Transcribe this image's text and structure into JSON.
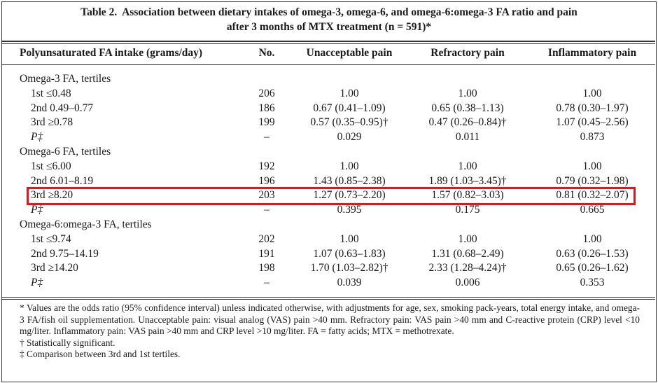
{
  "title": {
    "label": "Table 2.",
    "lines": [
      "Association between dietary intakes of omega-3, omega-6, and omega-6:omega-3 FA ratio and pain",
      "after 3 months of MTX treatment (n = 591)*"
    ]
  },
  "table": {
    "columns": [
      "Polyunsaturated FA intake (grams/day)",
      "No.",
      "Unacceptable pain",
      "Refractory pain",
      "Inflammatory pain"
    ],
    "groups": [
      {
        "label": "Omega-3 FA, tertiles",
        "rows": [
          {
            "cells": [
              "1st ≤0.48",
              "206",
              "1.00",
              "1.00",
              "1.00"
            ]
          },
          {
            "cells": [
              "2nd 0.49–0.77",
              "186",
              "0.67 (0.41–1.09)",
              "0.65 (0.38–1.13)",
              "0.78 (0.30–1.97)"
            ]
          },
          {
            "cells": [
              "3rd ≥0.78",
              "199",
              "0.57 (0.35–0.95)†",
              "0.47 (0.26–0.84)†",
              "1.07 (0.45–2.56)"
            ]
          },
          {
            "cells": [
              "P‡",
              "–",
              "0.029",
              "0.011",
              "0.873"
            ]
          }
        ]
      },
      {
        "label": "Omega-6 FA, tertiles",
        "rows": [
          {
            "cells": [
              "1st ≤6.00",
              "192",
              "1.00",
              "1.00",
              "1.00"
            ]
          },
          {
            "cells": [
              "2nd 6.01–8.19",
              "196",
              "1.43 (0.85–2.38)",
              "1.89 (1.03–3.45)†",
              "0.79 (0.32–1.98)"
            ]
          },
          {
            "cells": [
              "3rd ≥8.20",
              "203",
              "1.27 (0.73–2.20)",
              "1.57 (0.82–3.03)",
              "0.81 (0.32–2.07)"
            ],
            "highlight": true
          },
          {
            "cells": [
              "P‡",
              "–",
              "0.395",
              "0.175",
              "0.665"
            ]
          }
        ]
      },
      {
        "label": "Omega-6:omega-3 FA, tertiles",
        "rows": [
          {
            "cells": [
              "1st ≤9.74",
              "202",
              "1.00",
              "1.00",
              "1.00"
            ]
          },
          {
            "cells": [
              "2nd 9.75–14.19",
              "191",
              "1.07 (0.63–1.83)",
              "1.31 (0.68–2.49)",
              "0.63 (0.26–1.53)"
            ]
          },
          {
            "cells": [
              "3rd ≥14.20",
              "198",
              "1.70 (1.03–2.82)†",
              "2.33 (1.28–4.24)†",
              "0.65 (0.26–1.62)"
            ]
          },
          {
            "cells": [
              "P‡",
              "–",
              "0.039",
              "0.006",
              "0.353"
            ]
          }
        ]
      }
    ]
  },
  "footnotes": [
    "* Values are the odds ratio (95% confidence interval) unless indicated otherwise, with adjustments for age, sex, smoking pack-years, total energy intake, and omega-3 FA/fish oil supplementation. Unacceptable pain: visual analog (VAS) pain >40 mm. Refractory pain: VAS pain >40 mm and C-reactive protein (CRP) level <10 mg/liter. Inflammatory pain: VAS pain >40 mm and CRP level >10 mg/liter. FA = fatty acids; MTX = methotrexate.",
    "† Statistically significant.",
    "‡ Comparison between 3rd and 1st tertiles."
  ]
}
